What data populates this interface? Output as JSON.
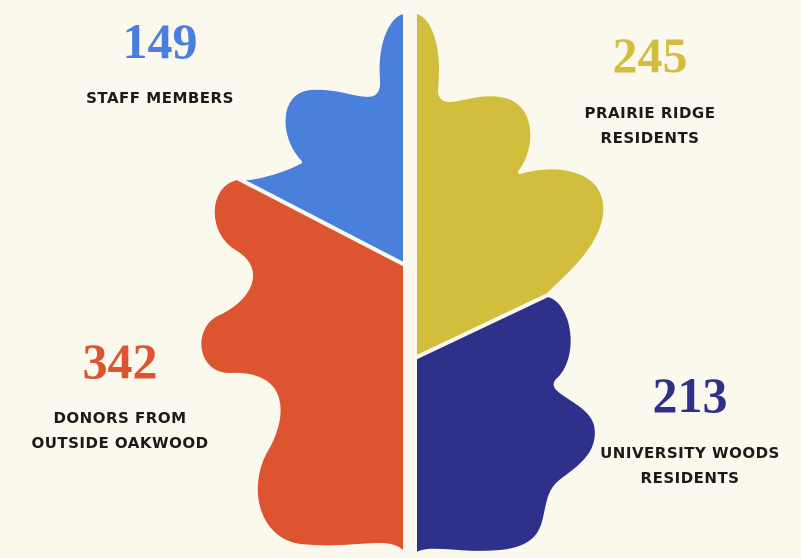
{
  "items": [
    {
      "value": 149,
      "lines": [
        "STAFF MEMBERS"
      ],
      "color": "#4a7fdc"
    },
    {
      "value": 245,
      "lines": [
        "PRAIRIE RIDGE",
        "RESIDENTS"
      ],
      "color": "#d2bd3c"
    },
    {
      "value": 342,
      "lines": [
        "DONORS FROM",
        "OUTSIDE OAKWOOD"
      ],
      "color": "#dc5430"
    },
    {
      "value": 213,
      "lines": [
        "UNIVERSITY WOODS",
        "RESIDENTS"
      ],
      "color": "#2f308a"
    }
  ]
}
